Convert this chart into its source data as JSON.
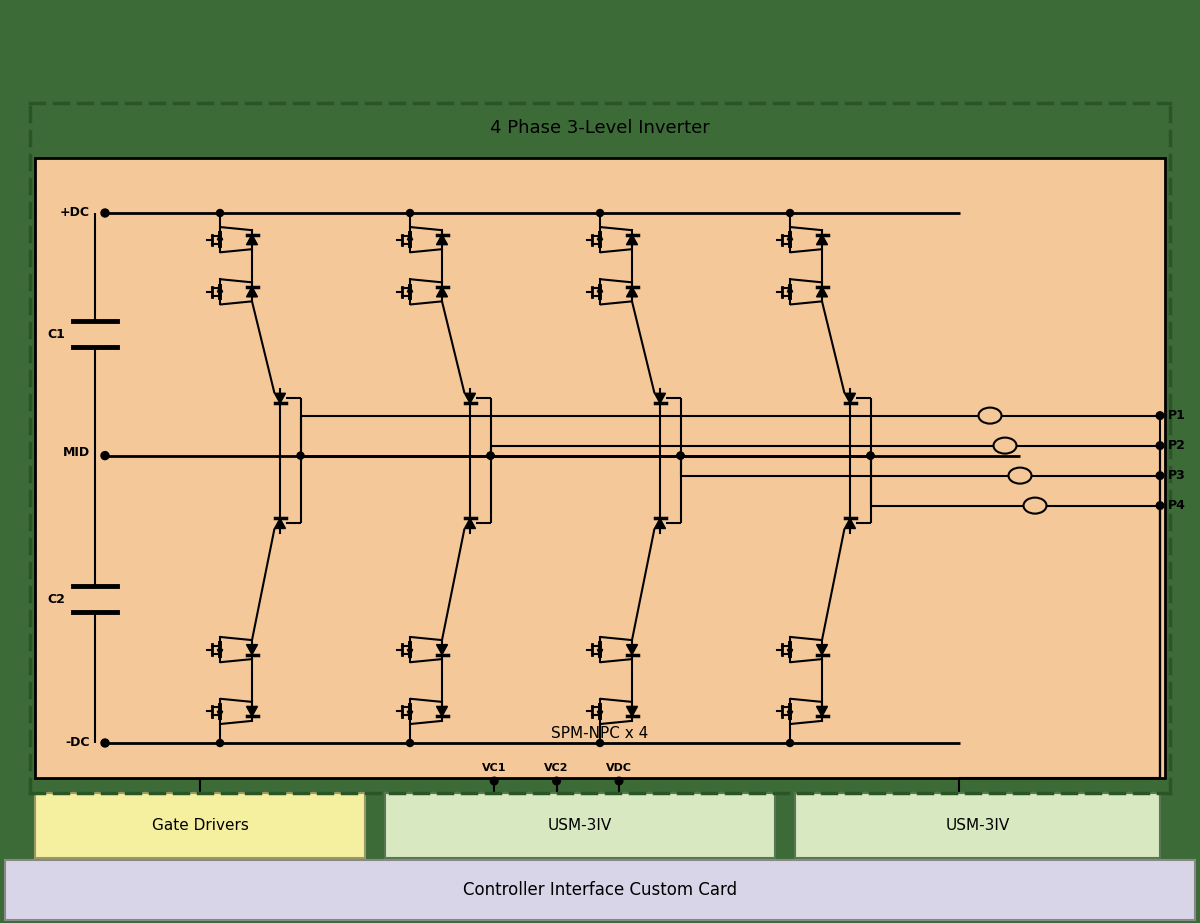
{
  "title": "4 Phase 3-Level Inverter",
  "subtitle_inner": "SPM-NPC x 4",
  "bg_outer": "#3d6b38",
  "bg_inverter": "#f5c89a",
  "bg_gate_drivers": "#f5f0a0",
  "bg_usm": "#d8e8c0",
  "bg_controller": "#d8d5e8",
  "label_gate": "Gate Drivers",
  "label_usm1": "USM-3IV",
  "label_usm2": "USM-3IV",
  "label_controller": "Controller Interface Custom Card",
  "labels_phase": [
    "P1",
    "P2",
    "P3",
    "P4"
  ],
  "labels_vc": [
    "VC1",
    "VC2",
    "VDC"
  ],
  "figsize": [
    12.0,
    9.23
  ]
}
